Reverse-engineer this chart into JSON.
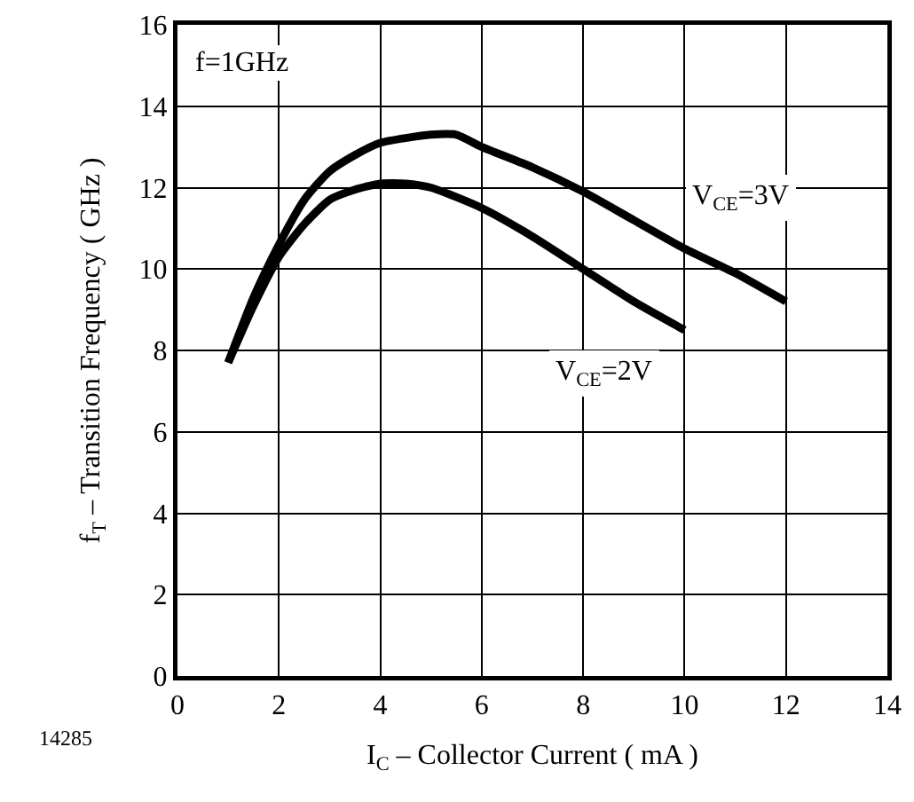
{
  "chart_data": {
    "type": "line",
    "xlabel": "I$_{C}$ – Collector Current ( mA )",
    "ylabel": "f$_{T}$ – Transition Frequency ( GHz )",
    "annotations": [
      "f=1GHz",
      "14285"
    ],
    "xlim": [
      0,
      14
    ],
    "xticks": [
      0,
      2,
      4,
      6,
      8,
      10,
      12,
      14
    ],
    "ylim": [
      0,
      16
    ],
    "yticks": [
      0,
      2,
      4,
      6,
      8,
      10,
      12,
      14,
      16
    ],
    "grid": true,
    "legend": false,
    "marker": "none",
    "line_style": "solid",
    "series": [
      {
        "name": "V$_{CE}$=3V",
        "color": "#000000",
        "x": [
          1,
          1.5,
          2,
          2.5,
          3,
          3.5,
          4,
          5,
          5.5,
          6,
          7,
          8,
          9,
          10,
          11,
          12
        ],
        "values": [
          7.7,
          9.3,
          10.6,
          11.7,
          12.4,
          12.8,
          13.1,
          13.3,
          13.3,
          13.0,
          12.5,
          11.9,
          11.2,
          10.5,
          9.9,
          9.2
        ]
      },
      {
        "name": "V$_{CE}$=2V",
        "color": "#000000",
        "x": [
          1,
          1.5,
          2,
          2.5,
          3,
          3.5,
          4,
          4.5,
          5,
          6,
          7,
          8,
          9,
          10
        ],
        "values": [
          7.7,
          9.1,
          10.3,
          11.1,
          11.7,
          11.95,
          12.1,
          12.1,
          12.0,
          11.5,
          10.8,
          10.0,
          9.2,
          8.5
        ]
      }
    ]
  }
}
